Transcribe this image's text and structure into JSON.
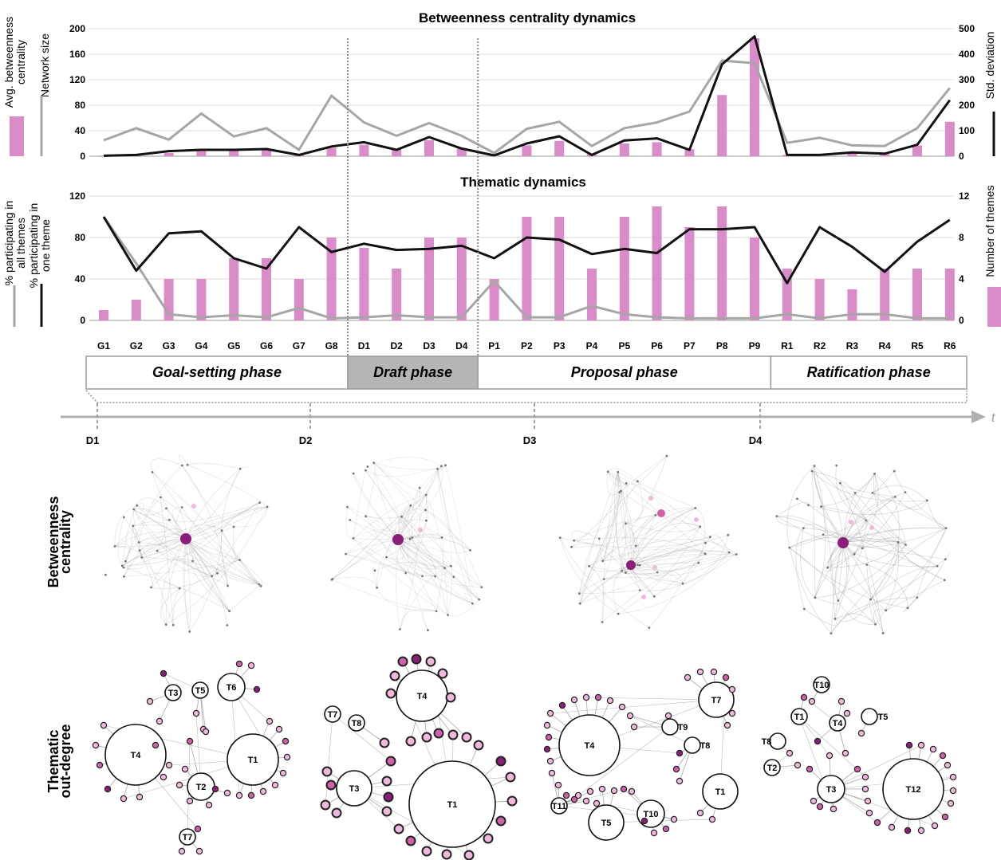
{
  "colors": {
    "bar": "#d98cc8",
    "black_line": "#111111",
    "gray_line": "#a6a6a6",
    "draft_fill": "#b5b5b5",
    "node_dark": "#8a1e78",
    "node_mid": "#d060a8",
    "node_light": "#f2b8dc"
  },
  "categories": [
    "G1",
    "G2",
    "G3",
    "G4",
    "G5",
    "G6",
    "G7",
    "G8",
    "D1",
    "D2",
    "D3",
    "D4",
    "P1",
    "P2",
    "P3",
    "P4",
    "P5",
    "P6",
    "P7",
    "P8",
    "P9",
    "R1",
    "R2",
    "R3",
    "R4",
    "R5",
    "R6"
  ],
  "phases": [
    {
      "label": "Goal-setting phase",
      "from": 0,
      "to": 7,
      "shaded": false
    },
    {
      "label": "Draft phase",
      "from": 8,
      "to": 11,
      "shaded": true
    },
    {
      "label": "Proposal phase",
      "from": 12,
      "to": 20,
      "shaded": false
    },
    {
      "label": "Ratification phase",
      "from": 21,
      "to": 26,
      "shaded": false
    }
  ],
  "chart_data": [
    {
      "type": "bar",
      "title": "Betweenness centrality dynamics",
      "ylabel_left": [
        "Avg. betweenness",
        "centrality"
      ],
      "ylabel_left2": "Network size",
      "ylabel_right": "Std. deviation",
      "ylim_left": [
        0,
        200
      ],
      "yticks_left": [
        0,
        40,
        80,
        120,
        160,
        200
      ],
      "ylim_right": [
        0,
        500
      ],
      "yticks_right": [
        0,
        100,
        200,
        300,
        400,
        500
      ],
      "grid": true,
      "series": [
        {
          "type": "bar",
          "axis": "left",
          "legend": "Avg. betweenness centrality",
          "values": [
            1,
            2,
            5,
            8,
            9,
            10,
            3,
            13,
            18,
            11,
            25,
            13,
            2,
            17,
            24,
            3,
            20,
            22,
            11,
            96,
            185,
            2,
            3,
            6,
            3,
            17,
            54
          ]
        },
        {
          "type": "line",
          "axis": "left",
          "legend": "Network size",
          "values": [
            25,
            44,
            26,
            67,
            31,
            44,
            10,
            95,
            53,
            32,
            52,
            32,
            5,
            43,
            54,
            16,
            44,
            53,
            70,
            150,
            146,
            21,
            29,
            17,
            16,
            44,
            107
          ]
        },
        {
          "type": "line",
          "axis": "right",
          "legend": "Std. deviation",
          "values": [
            2,
            5,
            20,
            25,
            25,
            28,
            5,
            38,
            55,
            25,
            75,
            30,
            3,
            50,
            78,
            5,
            62,
            70,
            25,
            360,
            470,
            5,
            5,
            15,
            10,
            45,
            220
          ]
        }
      ]
    },
    {
      "type": "bar",
      "title": "Thematic dynamics",
      "ylabel_left": [
        "% participating in",
        "all themes"
      ],
      "ylabel_left2": [
        "% participating in",
        "one theme"
      ],
      "ylabel_right": "Number of themes",
      "ylim_left": [
        0,
        120
      ],
      "yticks_left": [
        0,
        40,
        80,
        120
      ],
      "ylim_right": [
        0,
        12
      ],
      "yticks_right": [
        0,
        4,
        8,
        12
      ],
      "grid": true,
      "series": [
        {
          "type": "bar",
          "axis": "right",
          "legend": "Number of themes",
          "values": [
            1,
            2,
            4,
            4,
            6,
            6,
            4,
            8,
            7,
            5,
            8,
            8,
            4,
            10,
            10,
            5,
            10,
            11,
            9,
            11,
            8,
            5,
            4,
            3,
            5,
            5,
            5
          ]
        },
        {
          "type": "line",
          "axis": "left",
          "legend": "% participating in all themes",
          "values": [
            100,
            55,
            6,
            3,
            5,
            3,
            12,
            2,
            3,
            5,
            3,
            3,
            38,
            3,
            3,
            14,
            6,
            3,
            2,
            2,
            2,
            6,
            2,
            6,
            6,
            2,
            2
          ]
        },
        {
          "type": "line",
          "axis": "left",
          "legend": "% participating in one theme",
          "values": [
            100,
            48,
            84,
            86,
            60,
            50,
            90,
            66,
            74,
            68,
            69,
            72,
            60,
            80,
            78,
            64,
            69,
            65,
            88,
            88,
            90,
            36,
            90,
            71,
            47,
            76,
            97
          ]
        }
      ]
    }
  ],
  "timeline": {
    "axis_label": "t",
    "markers": [
      "D1",
      "D2",
      "D3",
      "D4"
    ]
  },
  "row_labels": {
    "centrality": [
      "Betweenness",
      "centrality"
    ],
    "outdegree": [
      "Thematic",
      "out-degree"
    ]
  },
  "thematic_graphs": [
    {
      "themes": [
        {
          "label": "T4",
          "size": "xl"
        },
        {
          "label": "T1",
          "size": "l"
        },
        {
          "label": "T6",
          "size": "s"
        },
        {
          "label": "T3",
          "size": "xs"
        },
        {
          "label": "T5",
          "size": "xs"
        },
        {
          "label": "T2",
          "size": "s"
        },
        {
          "label": "T7",
          "size": "xs"
        }
      ]
    },
    {
      "themes": [
        {
          "label": "T4",
          "size": "l"
        },
        {
          "label": "T1",
          "size": "xxl"
        },
        {
          "label": "T3",
          "size": "m"
        },
        {
          "label": "T7",
          "size": "xs"
        },
        {
          "label": "T8",
          "size": "xs"
        }
      ]
    },
    {
      "themes": [
        {
          "label": "T4",
          "size": "xl"
        },
        {
          "label": "T7",
          "size": "m"
        },
        {
          "label": "T1",
          "size": "m"
        },
        {
          "label": "T5",
          "size": "m"
        },
        {
          "label": "T10",
          "size": "s"
        },
        {
          "label": "T11",
          "size": "xs"
        },
        {
          "label": "T9",
          "size": "xs"
        },
        {
          "label": "T8",
          "size": "xs"
        }
      ]
    },
    {
      "themes": [
        {
          "label": "T12",
          "size": "xl"
        },
        {
          "label": "T3",
          "size": "s"
        },
        {
          "label": "T1",
          "size": "xs"
        },
        {
          "label": "T4",
          "size": "xs"
        },
        {
          "label": "T10",
          "size": "xs"
        },
        {
          "label": "T5",
          "size": "xs"
        },
        {
          "label": "T8",
          "size": "xs"
        },
        {
          "label": "T2",
          "size": "xs"
        }
      ]
    }
  ]
}
